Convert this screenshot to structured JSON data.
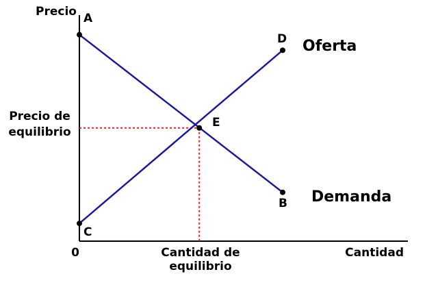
{
  "chart_data": {
    "type": "line",
    "ylabel": "Precio",
    "xlabel": "Cantidad",
    "origin_label": "0",
    "eq_price_label": [
      "Precio de",
      "equilibrio"
    ],
    "eq_quantity_label": [
      "Cantidad de",
      "equilibrio"
    ],
    "grid": false,
    "xlim": [
      0,
      10
    ],
    "ylim": [
      0,
      10
    ],
    "points": {
      "A": {
        "label": "A",
        "x": 0,
        "y": 9.3
      },
      "B": {
        "label": "B",
        "x": 10,
        "y": 2.2
      },
      "C": {
        "label": "C",
        "x": 0,
        "y": 0.8
      },
      "D": {
        "label": "D",
        "x": 10,
        "y": 8.6
      },
      "E": {
        "label": "E",
        "x": 5.9,
        "y": 5.1
      }
    },
    "series": [
      {
        "name": "Demanda",
        "from": "A",
        "to": "B",
        "color": "#1a1a9c"
      },
      {
        "name": "Oferta",
        "from": "C",
        "to": "D",
        "color": "#1a1a9c"
      }
    ],
    "guides_color": "#e8202a"
  }
}
